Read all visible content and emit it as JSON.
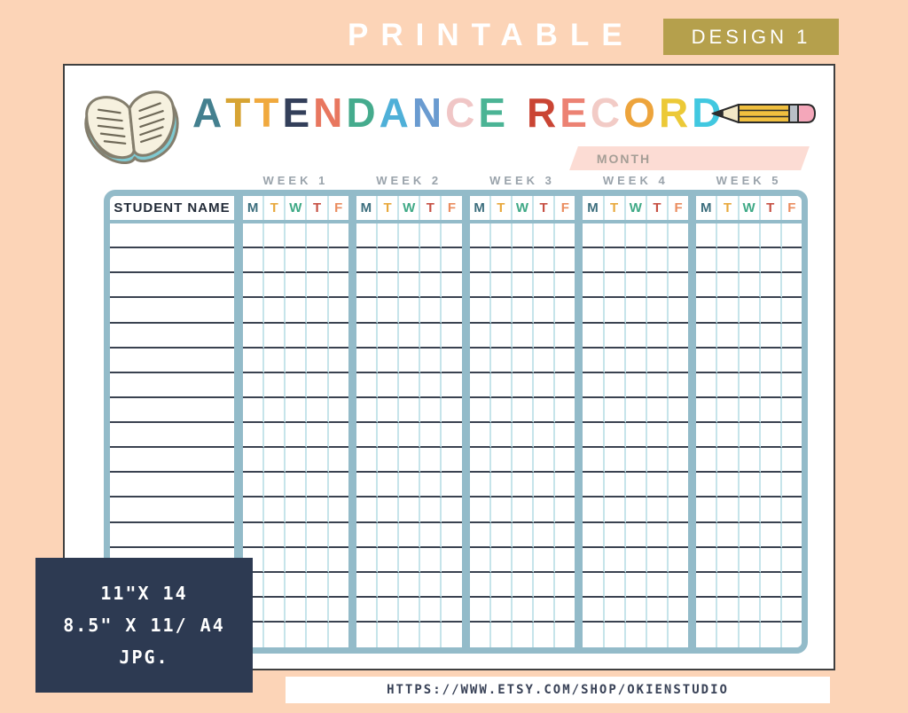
{
  "banner": {
    "printable_label": "PRINTABLE",
    "design_badge_label": "DESIGN 1"
  },
  "poster": {
    "title": {
      "word1": [
        {
          "ch": "A",
          "color": "#44808f"
        },
        {
          "ch": "T",
          "color": "#d7a434"
        },
        {
          "ch": "T",
          "color": "#f0a93e"
        },
        {
          "ch": "E",
          "color": "#333f5a"
        },
        {
          "ch": "N",
          "color": "#e8775f"
        },
        {
          "ch": "D",
          "color": "#45ab8d"
        },
        {
          "ch": "A",
          "color": "#4fb0d8"
        },
        {
          "ch": "N",
          "color": "#6a9bd0"
        },
        {
          "ch": "C",
          "color": "#f0c6c6"
        },
        {
          "ch": "E",
          "color": "#4bb495"
        }
      ],
      "word2": [
        {
          "ch": "R",
          "color": "#ca4534"
        },
        {
          "ch": "E",
          "color": "#ec8273"
        },
        {
          "ch": "C",
          "color": "#f2cbc6"
        },
        {
          "ch": "O",
          "color": "#eda43c"
        },
        {
          "ch": "R",
          "color": "#ecc937"
        },
        {
          "ch": "D",
          "color": "#41c8e0"
        }
      ]
    },
    "month_label": "MONTH",
    "table": {
      "student_name_header": "STUDENT NAME",
      "week_labels": [
        "WEEK 1",
        "WEEK 2",
        "WEEK 3",
        "WEEK 4",
        "WEEK 5"
      ],
      "day_letters": [
        {
          "ch": "M",
          "color": "#3c6e7d"
        },
        {
          "ch": "T",
          "color": "#e8a83c"
        },
        {
          "ch": "W",
          "color": "#3fa986"
        },
        {
          "ch": "T",
          "color": "#c65043"
        },
        {
          "ch": "F",
          "color": "#ea8c5e"
        }
      ],
      "row_count": 17
    },
    "icons": [
      "open-book-icon",
      "pencil-icon"
    ]
  },
  "info_box": {
    "lines": [
      "11\"X 14",
      "8.5\" X 11/ A4",
      "JPG."
    ]
  },
  "footer": {
    "url": "HTTPS://WWW.ETSY.COM/SHOP/OKIENSTUDIO"
  },
  "colors": {
    "background_peach": "#fcd4b7",
    "badge_gold": "#b5a04c",
    "card_white": "#ffffff",
    "table_frame_steel": "#93bbc9",
    "cell_line_cyan": "#c6e4ea",
    "row_line_dark": "#3a4250",
    "month_bar_pink": "#fcdcd4",
    "info_box_navy": "#2d3a52",
    "week_label_gray": "#9aa3ab"
  }
}
